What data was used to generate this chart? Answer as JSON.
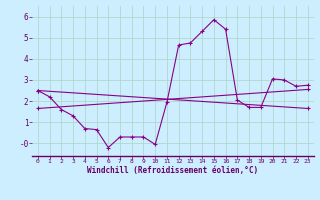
{
  "xlabel": "Windchill (Refroidissement éolien,°C)",
  "bg_color": "#cceeff",
  "grid_color": "#b0d8cc",
  "line_color": "#880088",
  "xlim": [
    -0.5,
    23.5
  ],
  "ylim": [
    -0.6,
    6.5
  ],
  "yticks": [
    0,
    1,
    2,
    3,
    4,
    5,
    6
  ],
  "ytick_labels": [
    "-0",
    "1",
    "2",
    "3",
    "4",
    "5",
    "6"
  ],
  "xticks": [
    0,
    1,
    2,
    3,
    4,
    5,
    6,
    7,
    8,
    9,
    10,
    11,
    12,
    13,
    14,
    15,
    16,
    17,
    18,
    19,
    20,
    21,
    22,
    23
  ],
  "curve1_x": [
    0,
    1,
    2,
    3,
    4,
    5,
    6,
    7,
    8,
    9,
    10,
    11,
    12,
    13,
    14,
    15,
    16,
    17,
    18,
    19,
    20,
    21,
    22,
    23
  ],
  "curve1_y": [
    2.5,
    2.2,
    1.6,
    1.3,
    0.7,
    0.65,
    -0.2,
    0.3,
    0.3,
    0.3,
    -0.05,
    1.95,
    4.65,
    4.75,
    5.3,
    5.85,
    5.4,
    2.05,
    1.7,
    1.7,
    3.05,
    3.0,
    2.7,
    2.75
  ],
  "curve2_x": [
    0,
    23
  ],
  "curve2_y": [
    1.65,
    2.55
  ],
  "curve3_x": [
    0,
    23
  ],
  "curve3_y": [
    2.5,
    1.65
  ]
}
